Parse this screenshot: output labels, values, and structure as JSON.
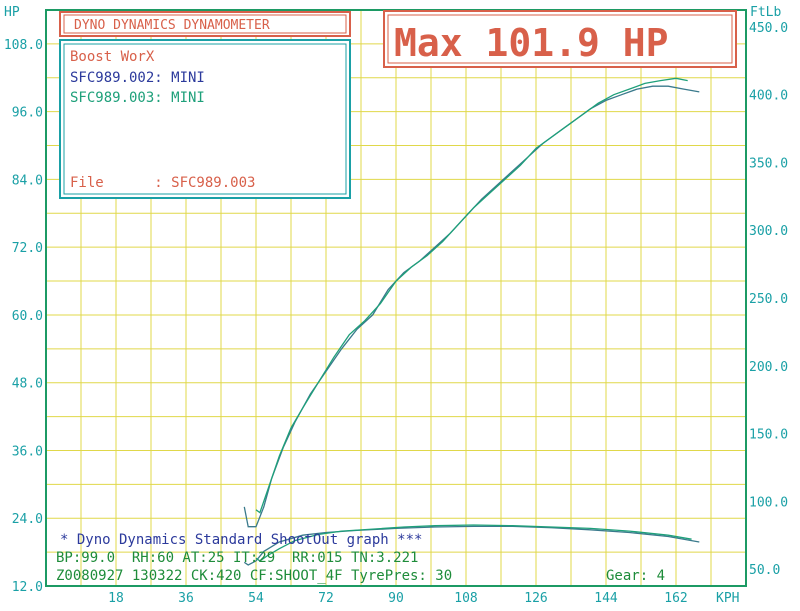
{
  "colors": {
    "grid": "#e0d84a",
    "axis": "#1c9a64",
    "teal": "#1aa0a6",
    "label_blue": "#2c3a9c",
    "red": "#d8604a",
    "green_text": "#1e8c3a",
    "curve_a": "#3a7a8c",
    "curve_b": "#1ea07a"
  },
  "header": {
    "brand": "DYNO DYNAMICS DYNAMOMETER",
    "max_label": "Max 101.9 HP"
  },
  "info_box": {
    "shop": "Boost WorX",
    "run1": "SFC989.002: MINI",
    "run2": "SFC989.003: MINI",
    "file_label": "File      : SFC989.003"
  },
  "footer": {
    "line1": "* Dyno Dynamics Standard ShootOut graph ***",
    "line2": "BP:99.0  RH:60 AT:25 IT:29  RR:015 TN:3.221",
    "line3": "Z0080927 130322 CK:420 CF:SHOOT_4F TyrePres: 30",
    "gear": "Gear: 4"
  },
  "chart_data": {
    "type": "line",
    "x_unit": "KPH",
    "y_left_unit": "HP",
    "y_right_unit": "FtLb",
    "xticks": [
      "18",
      "36",
      "54",
      "72",
      "90",
      "108",
      "126",
      "144",
      "162"
    ],
    "yticks_left": [
      "12.0",
      "24.0",
      "36.0",
      "48.0",
      "60.0",
      "72.0",
      "84.0",
      "96.0",
      "108.0"
    ],
    "yticks_right": [
      "50.0",
      "100.0",
      "150.0",
      "200.0",
      "250.0",
      "300.0",
      "350.0",
      "400.0",
      "450.0"
    ],
    "xlim": [
      0,
      180
    ],
    "ylim_left": [
      12,
      114
    ],
    "ylim_right": [
      37.5,
      462.5
    ],
    "grid": true,
    "series": [
      {
        "name": "SFC989.002: MINI",
        "axis": "left",
        "x": [
          51,
          52,
          54,
          56,
          58,
          61,
          64,
          68,
          72,
          76,
          80,
          84,
          88,
          92,
          96,
          100,
          104,
          108,
          112,
          116,
          120,
          124,
          128,
          132,
          136,
          140,
          144,
          148,
          152,
          156,
          160,
          164,
          168
        ],
        "y": [
          26,
          22.5,
          22.5,
          26,
          31,
          36.5,
          41,
          46,
          50,
          54,
          57.5,
          60,
          64.5,
          67.5,
          69.5,
          72,
          74.5,
          77.5,
          80.5,
          83,
          85.5,
          88,
          90.5,
          92.5,
          94.5,
          96.5,
          98,
          99,
          100,
          100.5,
          100.5,
          100,
          99.5
        ]
      },
      {
        "name": "SFC989.003: MINI",
        "axis": "left",
        "x": [
          54,
          55,
          57,
          60,
          63,
          66,
          70,
          74,
          78,
          82,
          86,
          90,
          94,
          98,
          102,
          106,
          110,
          114,
          118,
          122,
          126,
          130,
          134,
          138,
          142,
          146,
          150,
          154,
          158,
          162,
          165
        ],
        "y": [
          25.5,
          25,
          29,
          35,
          40,
          43.5,
          48,
          52.5,
          56.5,
          59,
          62,
          66,
          68.5,
          70.5,
          73,
          76,
          79,
          81.5,
          84,
          86.5,
          89.5,
          91.5,
          93.5,
          95.5,
          97.5,
          99,
          100,
          101,
          101.5,
          101.9,
          101.5
        ]
      },
      {
        "name": "SFC989.002: MINI",
        "axis": "right",
        "x": [
          51,
          52,
          54,
          56,
          60,
          66,
          72,
          80,
          90,
          100,
          110,
          120,
          130,
          140,
          150,
          160,
          168
        ],
        "y": [
          55,
          53,
          56,
          63,
          70,
          75,
          77,
          78.5,
          80,
          81,
          81.5,
          81.5,
          80.5,
          79,
          77,
          74,
          70
        ]
      },
      {
        "name": "SFC989.003: MINI",
        "axis": "right",
        "x": [
          54,
          55,
          57,
          60,
          64,
          70,
          76,
          84,
          92,
          100,
          110,
          120,
          130,
          140,
          150,
          160,
          166
        ],
        "y": [
          58,
          56,
          60,
          65,
          71,
          75.5,
          78,
          79.5,
          81,
          82,
          82.5,
          82,
          81,
          80,
          78,
          75,
          72
        ]
      }
    ]
  }
}
